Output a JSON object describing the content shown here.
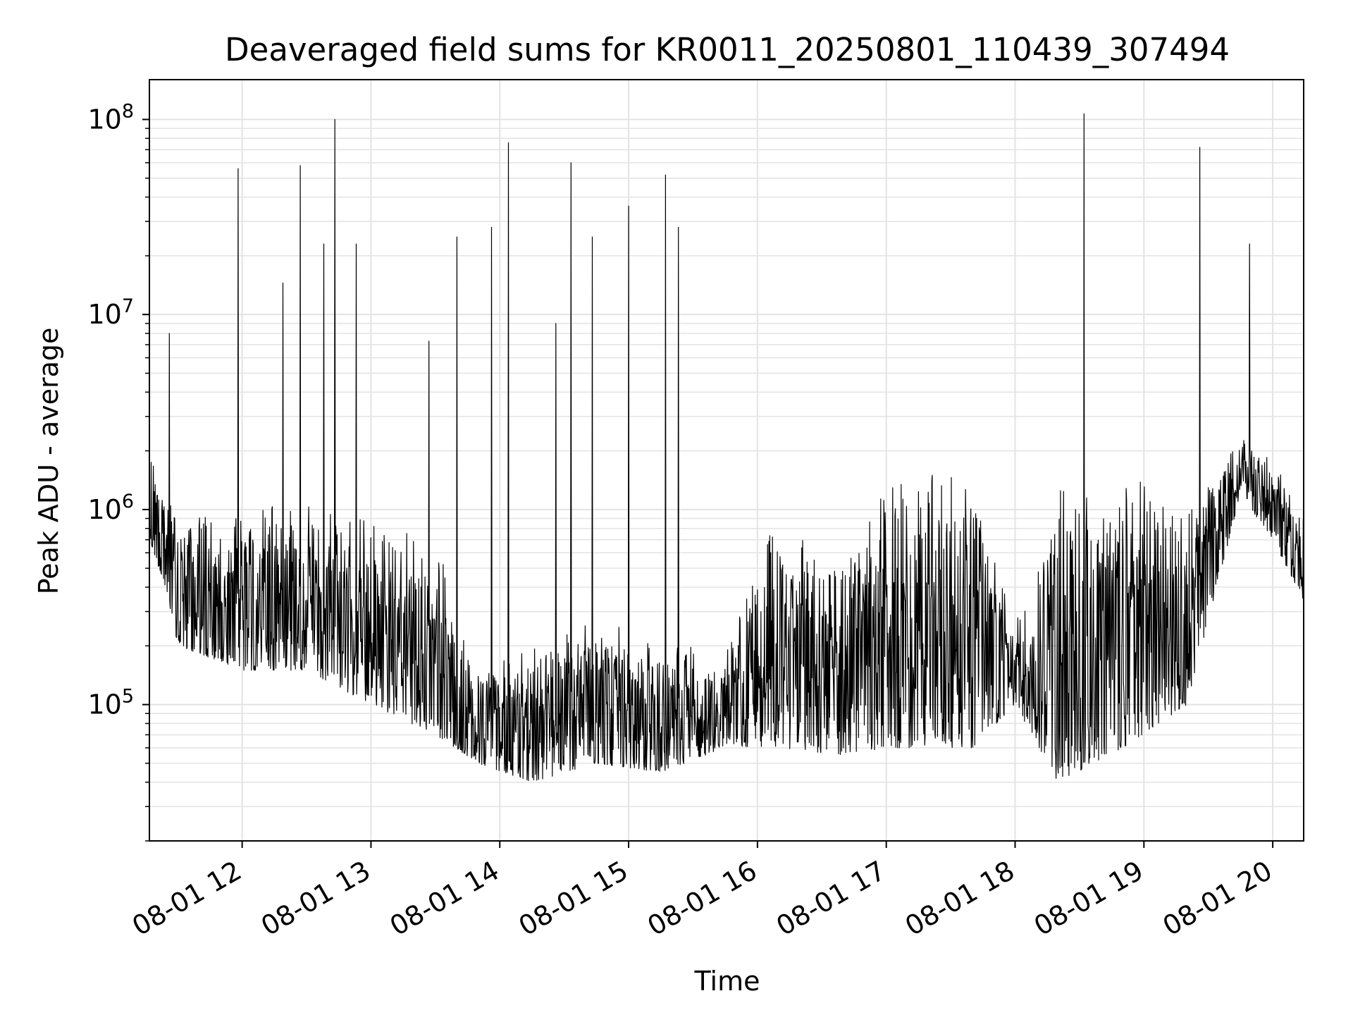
{
  "chart_data": {
    "type": "line",
    "title": "Deaveraged field sums for KR0011_20250801_110439_307494",
    "xlabel": "Time",
    "ylabel": "Peak ADU - average",
    "yscale": "log",
    "ylim": [
      20000,
      160000000
    ],
    "xlim_hours": [
      11.28,
      20.24
    ],
    "grid": true,
    "legend": "none",
    "line_color": "#000000",
    "x_ticks": [
      {
        "hour": 12,
        "label": "08-01 12"
      },
      {
        "hour": 13,
        "label": "08-01 13"
      },
      {
        "hour": 14,
        "label": "08-01 14"
      },
      {
        "hour": 15,
        "label": "08-01 15"
      },
      {
        "hour": 16,
        "label": "08-01 16"
      },
      {
        "hour": 17,
        "label": "08-01 17"
      },
      {
        "hour": 18,
        "label": "08-01 18"
      },
      {
        "hour": 19,
        "label": "08-01 19"
      },
      {
        "hour": 20,
        "label": "08-01 20"
      }
    ],
    "y_ticks": [
      {
        "value": 100000,
        "base": "10",
        "exp": "5"
      },
      {
        "value": 1000000,
        "base": "10",
        "exp": "6"
      },
      {
        "value": 10000000,
        "base": "10",
        "exp": "7"
      },
      {
        "value": 100000000,
        "base": "10",
        "exp": "8"
      }
    ],
    "series": [
      {
        "baseline": [
          {
            "t": "08-01 11:17",
            "lo": 700000,
            "hi": 2000000
          },
          {
            "t": "08-01 11:24",
            "lo": 400000,
            "hi": 1500000
          },
          {
            "t": "08-01 11:30",
            "lo": 200000,
            "hi": 900000
          },
          {
            "t": "08-01 12:00",
            "lo": 150000,
            "hi": 1100000
          },
          {
            "t": "08-01 12:30",
            "lo": 150000,
            "hi": 1200000
          },
          {
            "t": "08-01 13:00",
            "lo": 100000,
            "hi": 900000
          },
          {
            "t": "08-01 13:30",
            "lo": 70000,
            "hi": 700000
          },
          {
            "t": "08-01 13:50",
            "lo": 50000,
            "hi": 150000
          },
          {
            "t": "08-01 14:15",
            "lo": 40000,
            "hi": 200000
          },
          {
            "t": "08-01 14:45",
            "lo": 50000,
            "hi": 300000
          },
          {
            "t": "08-01 15:15",
            "lo": 45000,
            "hi": 200000
          },
          {
            "t": "08-01 15:45",
            "lo": 60000,
            "hi": 200000
          },
          {
            "t": "08-01 16:10",
            "lo": 60000,
            "hi": 1000000
          },
          {
            "t": "08-01 16:40",
            "lo": 55000,
            "hi": 500000
          },
          {
            "t": "08-01 17:00",
            "lo": 60000,
            "hi": 1500000
          },
          {
            "t": "08-01 17:40",
            "lo": 60000,
            "hi": 1600000
          },
          {
            "t": "08-01 18:00",
            "lo": 100000,
            "hi": 250000
          },
          {
            "t": "08-01 18:20",
            "lo": 40000,
            "hi": 1400000
          },
          {
            "t": "08-01 18:50",
            "lo": 60000,
            "hi": 1500000
          },
          {
            "t": "08-01 19:20",
            "lo": 100000,
            "hi": 1200000
          },
          {
            "t": "08-01 19:45",
            "lo": 1200000,
            "hi": 2500000
          },
          {
            "t": "08-01 20:00",
            "lo": 700000,
            "hi": 2000000
          },
          {
            "t": "08-01 20:14",
            "lo": 350000,
            "hi": 1000000
          }
        ],
        "spikes": [
          {
            "t": "08-01 11:26",
            "y": 8000000
          },
          {
            "t": "08-01 11:58",
            "y": 56000000
          },
          {
            "t": "08-01 12:19",
            "y": 14500000
          },
          {
            "t": "08-01 12:27",
            "y": 58000000
          },
          {
            "t": "08-01 12:38",
            "y": 23000000
          },
          {
            "t": "08-01 12:43",
            "y": 100000000
          },
          {
            "t": "08-01 12:53",
            "y": 23000000
          },
          {
            "t": "08-01 13:27",
            "y": 7300000
          },
          {
            "t": "08-01 13:40",
            "y": 25000000
          },
          {
            "t": "08-01 13:56",
            "y": 28000000
          },
          {
            "t": "08-01 14:04",
            "y": 76000000
          },
          {
            "t": "08-01 14:26",
            "y": 9000000
          },
          {
            "t": "08-01 14:33",
            "y": 60000000
          },
          {
            "t": "08-01 14:43",
            "y": 25000000
          },
          {
            "t": "08-01 15:00",
            "y": 36000000
          },
          {
            "t": "08-01 15:17",
            "y": 52000000
          },
          {
            "t": "08-01 15:23",
            "y": 28000000
          },
          {
            "t": "08-01 18:32",
            "y": 107000000
          },
          {
            "t": "08-01 19:26",
            "y": 72000000
          },
          {
            "t": "08-01 19:49",
            "y": 23000000
          }
        ]
      }
    ]
  }
}
